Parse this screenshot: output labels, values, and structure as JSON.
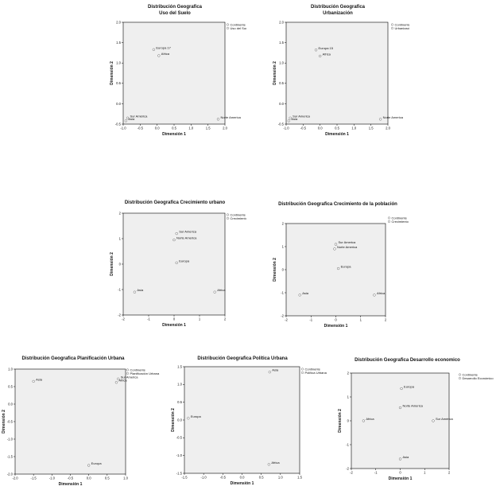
{
  "chart_data": [
    {
      "type": "scatter",
      "title": "Distribución Geografica\nUso del Suelo",
      "xlabel": "Dimensión 1",
      "ylabel": "Dimensión 2",
      "xlim": [
        -1.0,
        2.0
      ],
      "ylim": [
        -0.5,
        2.0
      ],
      "xticks": [
        -1.0,
        -0.5,
        0.0,
        0.5,
        1.0,
        1.5,
        2.0
      ],
      "yticks": [
        -0.5,
        0.0,
        0.5,
        1.0,
        1.5,
        2.0
      ],
      "legend": [
        "Continente",
        "Uso del Suelo"
      ],
      "points": [
        {
          "x": -0.1,
          "y": 1.33,
          "label": "Europa 17"
        },
        {
          "x": 0.05,
          "y": 1.18,
          "label": "Africa"
        },
        {
          "x": -0.87,
          "y": -0.35,
          "label": "Sur América"
        },
        {
          "x": -0.92,
          "y": -0.42,
          "label": "Asia"
        },
        {
          "x": 1.8,
          "y": -0.38,
          "label": "Norte America"
        }
      ]
    },
    {
      "type": "scatter",
      "title": "Distribución Geografica\nUrbanización",
      "xlabel": "Dimensión 1",
      "ylabel": "Dimensión 2",
      "xlim": [
        -1.0,
        2.0
      ],
      "ylim": [
        -0.5,
        2.0
      ],
      "xticks": [
        -1.0,
        -0.5,
        0.0,
        0.5,
        1.0,
        1.5,
        2.0
      ],
      "yticks": [
        -0.5,
        0.0,
        0.5,
        1.0,
        1.5,
        2.0
      ],
      "legend": [
        "Continente",
        "Urbanización"
      ],
      "points": [
        {
          "x": -0.12,
          "y": 1.32,
          "label": "Europa 15"
        },
        {
          "x": 0.0,
          "y": 1.17,
          "label": "Africa"
        },
        {
          "x": -0.88,
          "y": -0.35,
          "label": "Sur America"
        },
        {
          "x": -0.92,
          "y": -0.42,
          "label": "Asia"
        },
        {
          "x": 1.78,
          "y": -0.38,
          "label": "Norte America"
        }
      ]
    },
    {
      "type": "scatter",
      "title": "Distribución Geografica Crecimiento urbano",
      "xlabel": "Dimensión 1",
      "ylabel": "Dimensión 2",
      "xlim": [
        -2,
        2
      ],
      "ylim": [
        -2,
        2
      ],
      "xticks": [
        -2,
        -1,
        0,
        1,
        2
      ],
      "yticks": [
        -2,
        -1,
        0,
        1,
        2
      ],
      "legend": [
        "Continente",
        "Crecimiento Urbano"
      ],
      "points": [
        {
          "x": 0.1,
          "y": 1.2,
          "label": "Sur America"
        },
        {
          "x": 0.0,
          "y": 0.95,
          "label": "Norte America"
        },
        {
          "x": 0.1,
          "y": 0.05,
          "label": "Europa"
        },
        {
          "x": -1.55,
          "y": -1.1,
          "label": "Asia"
        },
        {
          "x": 1.6,
          "y": -1.1,
          "label": "Africa"
        }
      ]
    },
    {
      "type": "scatter",
      "title": "Distribución Geografica Crecimiento de la población",
      "xlabel": "Dimensión 1",
      "ylabel": "Dimensión 2",
      "xlim": [
        -2,
        2
      ],
      "ylim": [
        -2,
        2
      ],
      "xticks": [
        -2,
        -1,
        0,
        1,
        2
      ],
      "yticks": [
        -2,
        -1,
        0,
        1,
        2
      ],
      "legend": [
        "Continente",
        "Crecimiento de la población"
      ],
      "points": [
        {
          "x": 0.0,
          "y": 1.1,
          "label": "Sur America"
        },
        {
          "x": -0.05,
          "y": 0.9,
          "label": "Norte America"
        },
        {
          "x": 0.1,
          "y": 0.05,
          "label": "Europa"
        },
        {
          "x": -1.45,
          "y": -1.1,
          "label": "Asia"
        },
        {
          "x": 1.55,
          "y": -1.1,
          "label": "Africa"
        }
      ]
    },
    {
      "type": "scatter",
      "title": "Distribución Geografica Planificación Urbana",
      "xlabel": "Dimensión 1",
      "ylabel": "Dimensión 2",
      "xlim": [
        -2.0,
        1.0
      ],
      "ylim": [
        -2.0,
        1.0
      ],
      "xticks": [
        -2.0,
        -1.5,
        -1.0,
        -0.5,
        0.0,
        0.5,
        1.0
      ],
      "yticks": [
        -2.0,
        -1.5,
        -1.0,
        -0.5,
        0.0,
        0.5,
        1.0
      ],
      "legend": [
        "Continente",
        "Planificación Urbana"
      ],
      "points": [
        {
          "x": -1.5,
          "y": 0.65,
          "label": "Asia"
        },
        {
          "x": 0.8,
          "y": 0.72,
          "label": "Sur America"
        },
        {
          "x": 0.75,
          "y": 0.62,
          "label": "Africa"
        },
        {
          "x": 0.0,
          "y": -1.75,
          "label": "Europa"
        }
      ]
    },
    {
      "type": "scatter",
      "title": "Distribución Geografica Política Urbana",
      "xlabel": "Dimensión 1",
      "ylabel": "Dimensión 2",
      "xlim": [
        -1.5,
        1.5
      ],
      "ylim": [
        -1.5,
        1.5
      ],
      "xticks": [
        -1.5,
        -1.0,
        -0.5,
        0.0,
        0.5,
        1.0,
        1.5
      ],
      "yticks": [
        -1.5,
        -1.0,
        -0.5,
        0.0,
        0.5,
        1.0,
        1.5
      ],
      "legend": [
        "Continente",
        "Política Urbana"
      ],
      "points": [
        {
          "x": 0.72,
          "y": 1.35,
          "label": "Asia"
        },
        {
          "x": -1.4,
          "y": 0.05,
          "label": "Europa"
        },
        {
          "x": 0.7,
          "y": -1.25,
          "label": "Africa"
        }
      ]
    },
    {
      "type": "scatter",
      "title": "Distribución Geografica Desarrollo economico",
      "xlabel": "Dimensión 1",
      "ylabel": "Dimensión 2",
      "xlim": [
        -2,
        2
      ],
      "ylim": [
        -2,
        2
      ],
      "xticks": [
        -2,
        -1,
        0,
        1,
        2
      ],
      "yticks": [
        -2,
        -1,
        0,
        1,
        2
      ],
      "legend": [
        "Continente",
        "Desarrollo Económico"
      ],
      "points": [
        {
          "x": 0.05,
          "y": 1.35,
          "label": "Europa"
        },
        {
          "x": 0.0,
          "y": 0.55,
          "label": "Norte America"
        },
        {
          "x": 1.35,
          "y": 0.0,
          "label": "Sur América"
        },
        {
          "x": -1.5,
          "y": 0.0,
          "label": "Africa"
        },
        {
          "x": 0.0,
          "y": -1.6,
          "label": "Asia"
        }
      ]
    }
  ]
}
